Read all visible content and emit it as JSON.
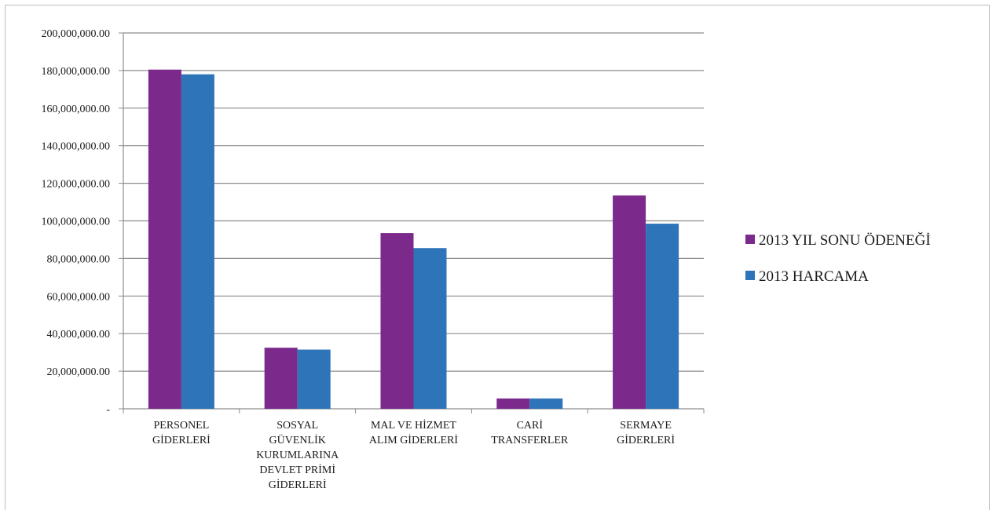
{
  "chart_data": {
    "type": "bar",
    "title": "",
    "xlabel": "",
    "ylabel": "",
    "ylim": [
      0,
      200000000
    ],
    "y_ticks": [
      "-",
      "20,000,000.00",
      "40,000,000.00",
      "60,000,000.00",
      "80,000,000.00",
      "100,000,000.00",
      "120,000,000.00",
      "140,000,000.00",
      "160,000,000.00",
      "180,000,000.00",
      "200,000,000.00"
    ],
    "grid": true,
    "legend_position": "right",
    "categories": [
      [
        "PERSONEL",
        "GİDERLERİ"
      ],
      [
        "SOSYAL",
        "GÜVENLİK",
        "KURUMLARINA",
        "DEVLET PRİMİ",
        "GİDERLERİ"
      ],
      [
        "MAL VE HİZMET",
        "ALIM GİDERLERİ"
      ],
      [
        "CARİ",
        "TRANSFERLER"
      ],
      [
        "SERMAYE",
        "GİDERLERİ"
      ]
    ],
    "series": [
      {
        "name": "2013 YIL SONU ÖDENEĞİ",
        "color": "#7B2A8C",
        "values": [
          180500000,
          32500000,
          93500000,
          5500000,
          113500000
        ]
      },
      {
        "name": "2013 HARCAMA",
        "color": "#2E74B8",
        "values": [
          178000000,
          31500000,
          85500000,
          5500000,
          98500000
        ]
      }
    ]
  }
}
